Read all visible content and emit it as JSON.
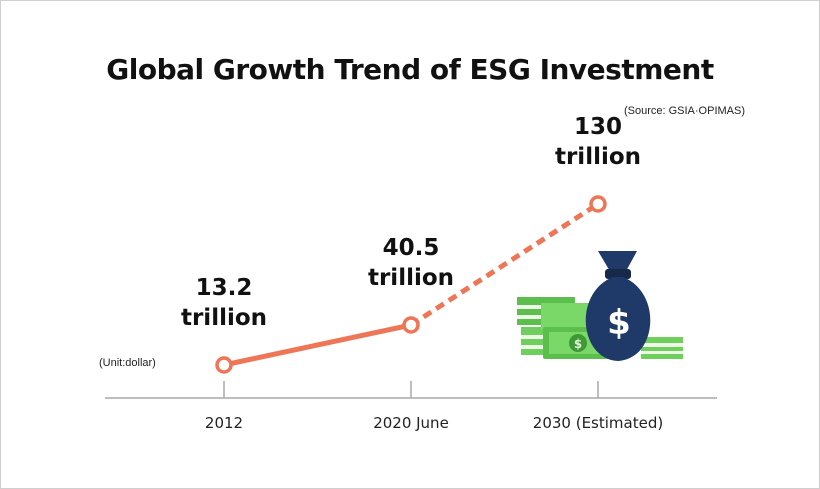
{
  "chart_data": {
    "type": "line",
    "title": "Global Growth Trend of ESG Investment",
    "source": "(Source: GSIA·OPIMAS)",
    "unit": "(Unit:dollar)",
    "categories": [
      "2012",
      "2020 June",
      "2030 (Estimated)"
    ],
    "values": [
      13.2,
      40.5,
      130
    ],
    "value_labels": [
      {
        "amount": "13.2",
        "suffix": "trillion"
      },
      {
        "amount": "40.5",
        "suffix": "trillion"
      },
      {
        "amount": "130",
        "suffix": "trillion"
      }
    ],
    "estimated_segment": "dashed line from 2020 June to 2030 (Estimated)",
    "series_color": "#ee7556",
    "grid": false,
    "ylim": [
      0,
      145
    ]
  },
  "colors": {
    "line": "#ee7556",
    "axis": "#a9a9a9",
    "bag": "#1f3a68",
    "cash": "#6fcf5c"
  },
  "icons": [
    "money-bag-icon",
    "cash-stack-icon"
  ]
}
